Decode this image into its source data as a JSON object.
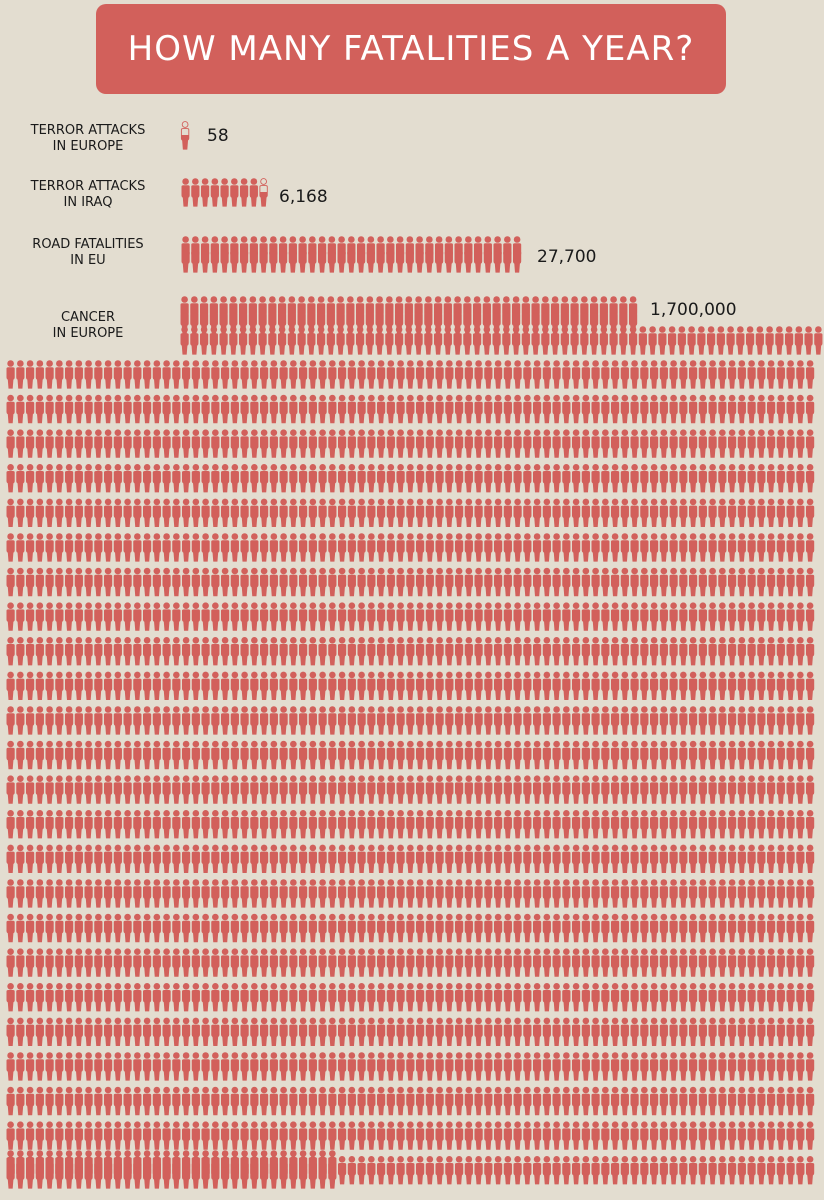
{
  "title": "HOW MANY FATALITIES A YEAR?",
  "colors": {
    "background": "#e3ddd0",
    "accent": "#d2605b",
    "text": "#1a1a1a"
  },
  "icon": "person-icon",
  "rows": [
    {
      "label_lines": [
        "TERROR ATTACKS",
        "IN EUROPE"
      ],
      "value_text": "58"
    },
    {
      "label_lines": [
        "TERROR ATTACKS",
        "IN IRAQ"
      ],
      "value_text": "6,168"
    },
    {
      "label_lines": [
        "ROAD FATALITIES",
        "IN EU"
      ],
      "value_text": "27,700"
    },
    {
      "label_lines": [
        "CANCER",
        "IN EUROPE"
      ],
      "value_text": "1,700,000"
    }
  ],
  "chart_data": {
    "type": "pictogram",
    "categories": [
      "TERROR ATTACKS IN EUROPE",
      "TERROR ATTACKS IN IRAQ",
      "ROAD FATALITIES IN EU",
      "CANCER IN EUROPE"
    ],
    "values": [
      58,
      6168,
      27700,
      1700000
    ]
  }
}
